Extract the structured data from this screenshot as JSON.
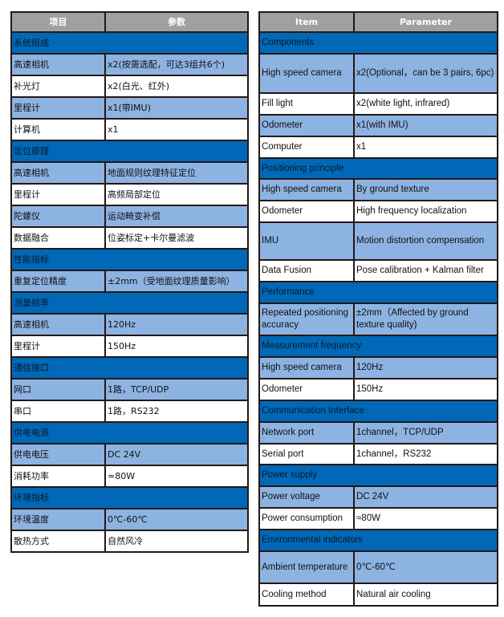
{
  "colors": {
    "header": "#a0a0a0",
    "section": "#0068b7",
    "row_light": "#8db3e2",
    "row_white": "#ffffff",
    "border": "#231815"
  },
  "left_table": {
    "headers": [
      "项目",
      "参数"
    ],
    "rows": [
      {
        "section": "系统组成"
      },
      {
        "item": "高速相机",
        "value": "x2(按需选配，可达3组共6个)"
      },
      {
        "item": "补光灯",
        "value": "x2(白光、红外)"
      },
      {
        "item": "里程计",
        "value": "x1(带IMU)"
      },
      {
        "item": "计算机",
        "value": "x1"
      },
      {
        "section": "定位原理"
      },
      {
        "item": "高速相机",
        "value": "地面规则纹理特征定位"
      },
      {
        "item": "里程计",
        "value": "高频局部定位"
      },
      {
        "item": "陀螺仪",
        "value": "运动畸变补偿"
      },
      {
        "item": "数据融合",
        "value": "位姿标定+卡尔曼滤波"
      },
      {
        "section": "性能指标"
      },
      {
        "item": "重复定位精度",
        "value": "±2mm（受地面纹理质量影响）"
      },
      {
        "section": "测量频率"
      },
      {
        "item": "高速相机",
        "value": "120Hz"
      },
      {
        "item": "里程计",
        "value": "150Hz"
      },
      {
        "section": "通信接口"
      },
      {
        "item": "网口",
        "value": "1路，TCP/UDP"
      },
      {
        "item": "串口",
        "value": "1路，RS232"
      },
      {
        "section": "供电电源"
      },
      {
        "item": "供电电压",
        "value": "DC 24V"
      },
      {
        "item": "消耗功率",
        "value": "≈80W"
      },
      {
        "section": "环境指标"
      },
      {
        "item": "环境温度",
        "value": "0℃-60℃"
      },
      {
        "item": "散热方式",
        "value": "自然风冷"
      }
    ]
  },
  "right_table": {
    "headers": [
      "Item",
      "Parameter"
    ],
    "rows": [
      {
        "section": "Components"
      },
      {
        "item": "High speed camera",
        "value": "x2(Optional，can be 3 pairs, 6pc)"
      },
      {
        "item": "Fill light",
        "value": "x2(white light, infrared)"
      },
      {
        "item": "Odometer",
        "value": "x1(with IMU)"
      },
      {
        "item": "Computer",
        "value": "x1"
      },
      {
        "section": "Positioning principle"
      },
      {
        "item": "High speed camera",
        "value": "By ground texture"
      },
      {
        "item": "Odometer",
        "value": "High frequency localization"
      },
      {
        "item": "IMU",
        "value": "Motion distortion compensation"
      },
      {
        "item": "Data Fusion",
        "value": "Pose calibration + Kalman filter"
      },
      {
        "section": "Performance"
      },
      {
        "item": "Repeated positioning accuracy",
        "value": "±2mm（Affected by ground texture quality)"
      },
      {
        "section": "Measurement frequency"
      },
      {
        "item": "High speed camera",
        "value": "120Hz"
      },
      {
        "item": "Odometer",
        "value": "150Hz"
      },
      {
        "section": "Communication Interface"
      },
      {
        "item": "Network port",
        "value": "1channel，TCP/UDP"
      },
      {
        "item": "Serial port",
        "value": "1channel，RS232"
      },
      {
        "section": "Power supply"
      },
      {
        "item": "Power voltage",
        "value": "DC 24V"
      },
      {
        "item": "Power consumption",
        "value": "≈80W"
      },
      {
        "section": "Environmental indicators"
      },
      {
        "item": "Ambient temperature",
        "value": "0℃-60℃"
      },
      {
        "item": "Cooling method",
        "value": "Natural air cooling"
      }
    ]
  }
}
